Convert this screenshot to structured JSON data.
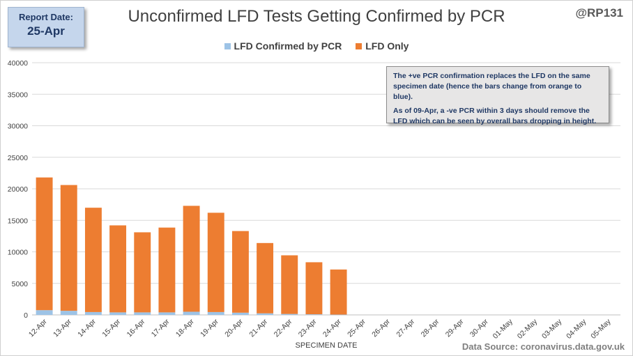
{
  "report": {
    "label": "Report Date:",
    "date": "25-Apr"
  },
  "handle": "@RP131",
  "source": "Data Source: coronavirus.data.gov.uk",
  "note": {
    "line1": "The +ve PCR confirmation replaces the LFD on the same specimen date (hence the bars change from orange to blue).",
    "line2": "As of 09-Apr, a -ve PCR within 3 days should remove the LFD which can be seen by overall bars dropping  in height."
  },
  "colors": {
    "confirmed": "#9dc3e6",
    "lfd_only": "#ed7d31",
    "grid": "#d9d9d9"
  },
  "chart_data": {
    "type": "bar",
    "stacked": true,
    "title": "Unconfirmed LFD Tests Getting Confirmed by PCR",
    "xlabel": "SPECIMEN DATE",
    "ylabel": "",
    "ylim": [
      0,
      40000
    ],
    "yticks": [
      0,
      5000,
      10000,
      15000,
      20000,
      25000,
      30000,
      35000,
      40000
    ],
    "grid": true,
    "legend_position": "top",
    "categories": [
      "12-Apr",
      "13-Apr",
      "14-Apr",
      "15-Apr",
      "16-Apr",
      "17-Apr",
      "18-Apr",
      "19-Apr",
      "20-Apr",
      "21-Apr",
      "22-Apr",
      "23-Apr",
      "24-Apr",
      "25-Apr",
      "26-Apr",
      "27-Apr",
      "28-Apr",
      "29-Apr",
      "30-Apr",
      "01-May",
      "02-May",
      "03-May",
      "04-May",
      "05-May"
    ],
    "series": [
      {
        "name": "LFD Confirmed by PCR",
        "values": [
          750,
          650,
          450,
          400,
          400,
          400,
          500,
          450,
          350,
          250,
          150,
          100,
          50,
          0,
          0,
          0,
          0,
          0,
          0,
          0,
          0,
          0,
          0,
          0
        ]
      },
      {
        "name": "LFD Only",
        "values": [
          21050,
          19950,
          16550,
          13800,
          12700,
          13450,
          16800,
          15750,
          12950,
          11150,
          9300,
          8250,
          7150,
          0,
          0,
          0,
          0,
          0,
          0,
          0,
          0,
          0,
          0,
          0
        ]
      }
    ]
  }
}
